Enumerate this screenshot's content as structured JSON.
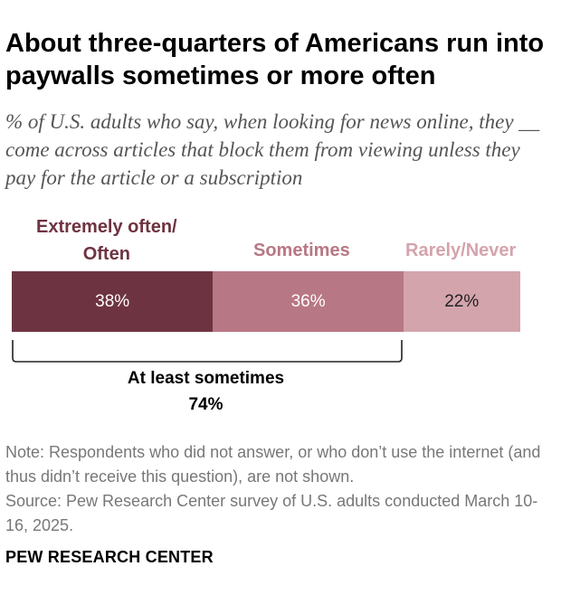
{
  "title": "About three-quarters of Americans run into paywalls sometimes or more often",
  "subtitle": "% of U.S. adults who say, when looking for news online, they __ come across articles that block them from viewing unless they pay for the article or a subscription",
  "colors": {
    "often": "#6e3341",
    "sometimes": "#b87784",
    "rarely": "#d4a4ad",
    "often_text": "#6e3341",
    "sometimes_text": "#b87784",
    "rarely_text": "#d4a4ad"
  },
  "chart_data": {
    "type": "bar",
    "orientation": "horizontal",
    "stacked": true,
    "categories": [
      "Extremely often/ Often",
      "Sometimes",
      "Rarely/Never"
    ],
    "category_label_lines": [
      [
        "Extremely often/",
        "Often"
      ],
      [
        "Sometimes"
      ],
      [
        "Rarely/Never"
      ]
    ],
    "values": [
      38,
      36,
      22
    ],
    "value_labels": [
      "38%",
      "36%",
      "22%"
    ],
    "annotation": {
      "label": "At least sometimes",
      "value_label": "74%",
      "spans": [
        "Extremely often/ Often",
        "Sometimes"
      ]
    },
    "legend": "above bar"
  },
  "note": "Note: Respondents who did not answer, or who don’t use the internet (and thus didn’t receive this question), are not shown.",
  "source": "Source: Pew Research Center survey of U.S. adults conducted March 10-16, 2025.",
  "brand": "PEW RESEARCH CENTER"
}
